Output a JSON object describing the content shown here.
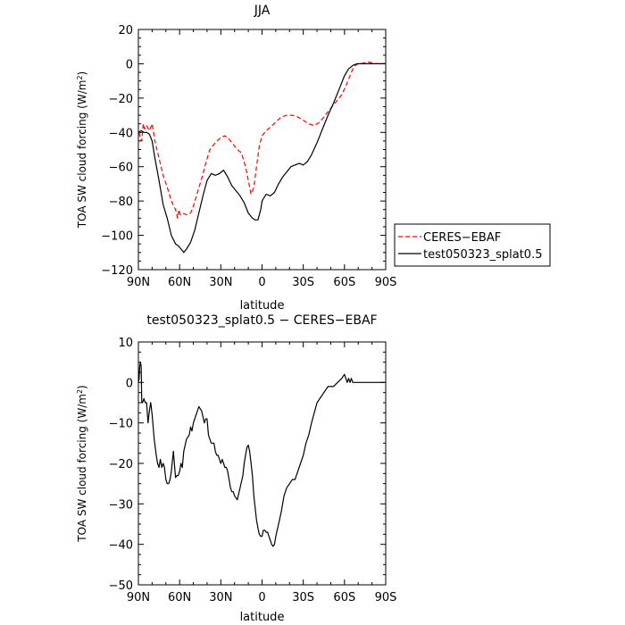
{
  "chart_data": [
    {
      "type": "line",
      "title": "JJA",
      "xlabel": "latitude",
      "ylabel": "TOA SW cloud forcing (W/m",
      "ylabel_sup": "2",
      "ylabel_end": ")",
      "xlim": [
        90,
        -90
      ],
      "ylim": [
        -120,
        20
      ],
      "x_ticks": [
        90,
        60,
        30,
        0,
        -30,
        -60,
        -90
      ],
      "x_tick_labels": [
        "90N",
        "60N",
        "30N",
        "0",
        "30S",
        "60S",
        "90S"
      ],
      "y_ticks": [
        20,
        0,
        -20,
        -40,
        -60,
        -80,
        -100,
        -120
      ],
      "y_tick_labels": [
        "20",
        "0",
        "−20",
        "−40",
        "−60",
        "−80",
        "−100",
        "−120"
      ],
      "grid": false,
      "legend_position": "right",
      "series": [
        {
          "name": "CERES−EBAF",
          "color": "#ff0000",
          "dash": "dashed",
          "x": [
            89.5,
            88.5,
            87.5,
            86.5,
            85.5,
            84,
            82,
            80,
            78,
            75,
            72,
            69,
            66,
            63,
            61.5,
            60.5,
            59.5,
            58,
            55,
            52,
            50,
            47,
            44,
            41,
            38,
            34,
            30,
            27,
            24,
            21,
            18,
            15,
            12,
            10,
            8,
            6,
            4,
            2,
            0,
            -3,
            -6,
            -10,
            -14,
            -18,
            -22,
            -26,
            -30,
            -34,
            -38,
            -42,
            -46,
            -50,
            -54,
            -58,
            -61,
            -64,
            -66,
            -68,
            -70,
            -72,
            -74,
            -76,
            -78,
            -80,
            -82,
            -85,
            -88,
            -90
          ],
          "y": [
            -40,
            -44,
            -45,
            -35,
            -38,
            -36,
            -39,
            -35,
            -45,
            -55,
            -65,
            -72,
            -80,
            -85,
            -90,
            -85,
            -88,
            -87,
            -88,
            -87,
            -83,
            -75,
            -67,
            -58,
            -50,
            -46,
            -43,
            -42,
            -44,
            -47,
            -50,
            -52,
            -60,
            -68,
            -76,
            -72,
            -60,
            -48,
            -42,
            -39,
            -37,
            -34,
            -31,
            -30,
            -30,
            -31,
            -33,
            -35,
            -36,
            -34,
            -30,
            -26,
            -22,
            -18,
            -13,
            -7,
            -3,
            -1,
            0,
            0,
            0.5,
            1,
            1,
            0.5,
            0,
            0,
            0,
            0
          ]
        },
        {
          "name": "test050323_splat0.5",
          "color": "#000000",
          "dash": "solid",
          "x": [
            90,
            88,
            86,
            84,
            82,
            80,
            78,
            75,
            72,
            69,
            66,
            63,
            61,
            59,
            57,
            55,
            52,
            49,
            46,
            43,
            40,
            37,
            34,
            31,
            28,
            25,
            22,
            19,
            16,
            13,
            10,
            7,
            5,
            3,
            1,
            0,
            -3,
            -6,
            -9,
            -12,
            -15,
            -18,
            -21,
            -24,
            -27,
            -30,
            -33,
            -36,
            -40,
            -44,
            -48,
            -52,
            -56,
            -60,
            -63,
            -66,
            -69,
            -72,
            -75,
            -78,
            -81,
            -84,
            -87,
            -90
          ],
          "y": [
            -40,
            -39,
            -40,
            -40,
            -41,
            -45,
            -55,
            -68,
            -82,
            -90,
            -100,
            -105,
            -106,
            -108,
            -110,
            -108,
            -104,
            -97,
            -87,
            -77,
            -68,
            -64,
            -65,
            -64,
            -62,
            -66,
            -71,
            -74,
            -77,
            -81,
            -87,
            -90,
            -91,
            -91,
            -85,
            -80,
            -76,
            -77,
            -75,
            -70,
            -66,
            -63,
            -60,
            -59,
            -58,
            -59,
            -57,
            -53,
            -46,
            -38,
            -30,
            -23,
            -15,
            -7,
            -3,
            -1,
            0,
            0,
            0,
            0,
            0,
            0,
            0,
            0
          ]
        }
      ]
    },
    {
      "type": "line",
      "title": "test050323_splat0.5 − CERES−EBAF",
      "xlabel": "latitude",
      "ylabel": "TOA SW cloud forcing (W/m",
      "ylabel_sup": "2",
      "ylabel_end": ")",
      "xlim": [
        90,
        -90
      ],
      "ylim": [
        -50,
        10
      ],
      "x_ticks": [
        90,
        60,
        30,
        0,
        -30,
        -60,
        -90
      ],
      "x_tick_labels": [
        "90N",
        "60N",
        "30N",
        "0",
        "30S",
        "60S",
        "90S"
      ],
      "y_ticks": [
        10,
        0,
        -10,
        -20,
        -30,
        -40,
        -50
      ],
      "y_tick_labels": [
        "10",
        "0",
        "−10",
        "−20",
        "−30",
        "−40",
        "−50"
      ],
      "grid": false,
      "series": [
        {
          "color": "#000000",
          "dash": "solid",
          "x": [
            90,
            89.5,
            89,
            88.5,
            88,
            87.5,
            87,
            86,
            85,
            84,
            83,
            82,
            81,
            80,
            78.5,
            77,
            76,
            75,
            74,
            73,
            72,
            71,
            70,
            69,
            68,
            67,
            66,
            64.5,
            63,
            62,
            61.5,
            61,
            60,
            59,
            58,
            57,
            55,
            53,
            52,
            51,
            50,
            49,
            48,
            47,
            46,
            44,
            42,
            41,
            40,
            39,
            38,
            37,
            36,
            35,
            34,
            33,
            32,
            31,
            30,
            29,
            28,
            27,
            26,
            25,
            24,
            23,
            22,
            21,
            20,
            18,
            16,
            14,
            13,
            12,
            11,
            10,
            9,
            8,
            7,
            6,
            5,
            4,
            3,
            2,
            1,
            0,
            -1,
            -2,
            -3,
            -4,
            -5,
            -6,
            -7,
            -8,
            -9,
            -10,
            -12,
            -14,
            -16,
            -18,
            -20,
            -22,
            -24,
            -26,
            -28,
            -30,
            -32,
            -34,
            -36,
            -40,
            -44,
            -48,
            -52,
            -55,
            -58,
            -60,
            -62,
            -63,
            -64,
            -65,
            -66,
            -67,
            -68,
            -70,
            -72,
            -74,
            -76,
            -78,
            -80,
            -82,
            -84,
            -86,
            -88,
            -90
          ],
          "y": [
            0,
            1,
            4,
            5,
            4,
            -5,
            -5,
            -4,
            -5,
            -5,
            -10,
            -7,
            -5,
            -8,
            -14,
            -18,
            -20,
            -21,
            -19,
            -21,
            -20,
            -21,
            -24,
            -25,
            -25,
            -24,
            -22,
            -17,
            -23.5,
            -23,
            -23,
            -23,
            -22,
            -20,
            -21,
            -17,
            -14,
            -13,
            -11,
            -12,
            -10,
            -9,
            -8,
            -7,
            -6,
            -7,
            -10,
            -9,
            -9,
            -13,
            -14,
            -15,
            -15,
            -15,
            -17,
            -18,
            -18,
            -19,
            -20,
            -19,
            -20,
            -21,
            -21,
            -22,
            -24,
            -26,
            -27,
            -27,
            -28,
            -29,
            -26,
            -23,
            -20,
            -18,
            -16,
            -15.5,
            -17,
            -20,
            -23,
            -28,
            -31,
            -34,
            -36,
            -37.5,
            -38,
            -38,
            -36.5,
            -36.5,
            -37,
            -37,
            -38,
            -39,
            -40,
            -40.5,
            -40,
            -38,
            -35,
            -32,
            -28,
            -26,
            -25,
            -24,
            -24,
            -22,
            -20,
            -18,
            -15,
            -13,
            -10,
            -5,
            -3,
            -1,
            -1,
            0,
            1,
            2,
            0,
            1,
            0,
            1,
            0,
            0,
            0,
            0,
            0,
            0,
            0,
            0,
            0,
            0,
            0,
            0,
            0,
            0
          ]
        }
      ]
    }
  ]
}
